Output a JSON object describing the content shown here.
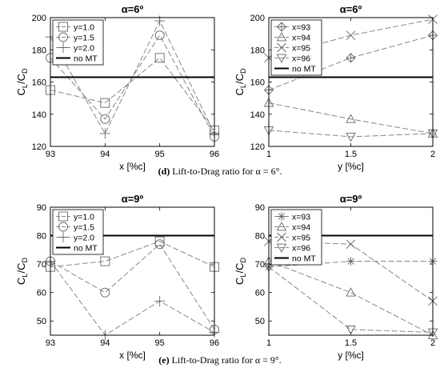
{
  "captions": [
    {
      "label": "(d)",
      "text": "Lift-to-Drag ratio for α = 6°."
    },
    {
      "label": "(e)",
      "text": "Lift-to-Drag ratio for α = 9°."
    }
  ],
  "chart_data": [
    {
      "type": "line",
      "title": "α=6º",
      "xlabel": "x  [%c]",
      "ylabel": "CL/CD",
      "x": [
        93,
        94,
        95,
        96
      ],
      "xlim": [
        93,
        96
      ],
      "ylim": [
        120,
        200
      ],
      "xticks": [
        "93",
        "94",
        "95",
        "96"
      ],
      "yticks": [
        "120",
        "140",
        "160",
        "180",
        "200"
      ],
      "legend_position": "top-left",
      "series": [
        {
          "name": "y=1.0",
          "marker": "square",
          "values": [
            155,
            147,
            175,
            130
          ]
        },
        {
          "name": "y=1.5",
          "marker": "circle",
          "values": [
            175,
            137,
            189,
            126
          ]
        },
        {
          "name": "y=2.0",
          "marker": "plus",
          "values": [
            188,
            128,
            198,
            128
          ]
        },
        {
          "name": "no MT",
          "marker": "none",
          "values": [
            163,
            163,
            163,
            163
          ]
        }
      ]
    },
    {
      "type": "line",
      "title": "α=6º",
      "xlabel": "y  [%c]",
      "ylabel": "CL/CD",
      "x": [
        1,
        1.5,
        2
      ],
      "xlim": [
        1,
        2
      ],
      "ylim": [
        120,
        200
      ],
      "xticks": [
        "1",
        "1.5",
        "2"
      ],
      "yticks": [
        "120",
        "140",
        "160",
        "180",
        "200"
      ],
      "legend_position": "top-left",
      "series": [
        {
          "name": "x=93",
          "marker": "diamond-plus",
          "values": [
            155,
            175,
            189
          ]
        },
        {
          "name": "x=94",
          "marker": "triangle-up",
          "values": [
            147,
            137,
            128
          ]
        },
        {
          "name": "x=95",
          "marker": "x",
          "values": [
            175,
            189,
            199
          ]
        },
        {
          "name": "x=96",
          "marker": "triangle-down",
          "values": [
            130,
            126,
            128
          ]
        },
        {
          "name": "no MT",
          "marker": "none",
          "values": [
            163,
            163,
            163
          ]
        }
      ]
    },
    {
      "type": "line",
      "title": "α=9º",
      "xlabel": "x  [%c]",
      "ylabel": "CL/CD",
      "x": [
        93,
        94,
        95,
        96
      ],
      "xlim": [
        93,
        96
      ],
      "ylim": [
        45,
        90
      ],
      "xticks": [
        "93",
        "94",
        "95",
        "96"
      ],
      "yticks": [
        "50",
        "60",
        "70",
        "80",
        "90"
      ],
      "legend_position": "top-left",
      "series": [
        {
          "name": "y=1.0",
          "marker": "square",
          "values": [
            69,
            71,
            78,
            69
          ]
        },
        {
          "name": "y=1.5",
          "marker": "circle",
          "values": [
            71,
            60,
            77,
            47
          ]
        },
        {
          "name": "y=2.0",
          "marker": "plus",
          "values": [
            71,
            45,
            57,
            46
          ]
        },
        {
          "name": "no MT",
          "marker": "none",
          "values": [
            80,
            80,
            80,
            80
          ]
        }
      ]
    },
    {
      "type": "line",
      "title": "α=9º",
      "xlabel": "y  [%c]",
      "ylabel": "CL/CD",
      "x": [
        1,
        1.5,
        2
      ],
      "xlim": [
        1,
        2
      ],
      "ylim": [
        45,
        90
      ],
      "xticks": [
        "1",
        "1.5",
        "2"
      ],
      "yticks": [
        "50",
        "60",
        "70",
        "80",
        "90"
      ],
      "legend_position": "top-left",
      "series": [
        {
          "name": "x=93",
          "marker": "star",
          "values": [
            69,
            71,
            71
          ]
        },
        {
          "name": "x=94",
          "marker": "triangle-up",
          "values": [
            71,
            60,
            45
          ]
        },
        {
          "name": "x=95",
          "marker": "x",
          "values": [
            78,
            77,
            57
          ]
        },
        {
          "name": "x=96",
          "marker": "triangle-down",
          "values": [
            69,
            47,
            46
          ]
        },
        {
          "name": "no MT",
          "marker": "none",
          "values": [
            80,
            80,
            80
          ]
        }
      ]
    }
  ]
}
